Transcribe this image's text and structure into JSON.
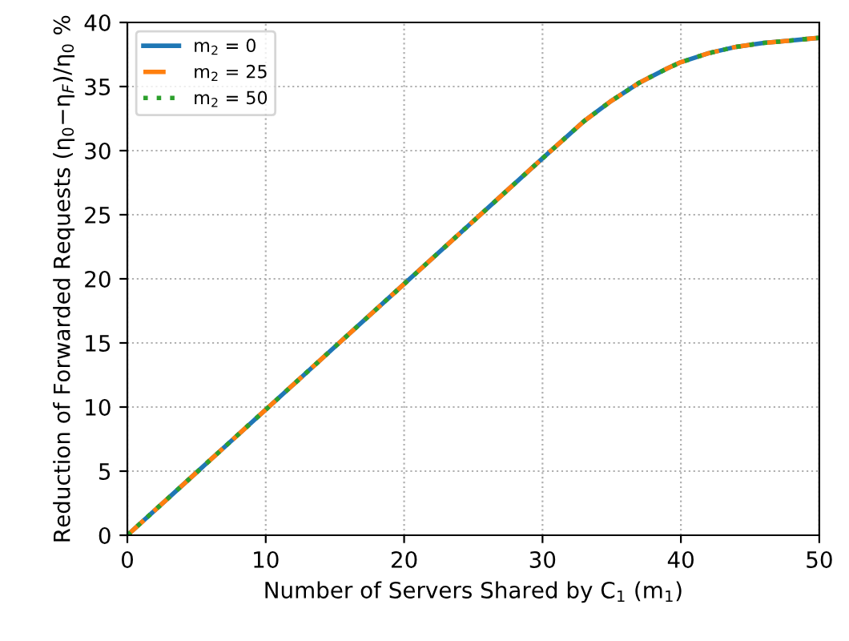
{
  "chart_data": {
    "type": "line",
    "xlabel": "Number of Servers Shared by C$_{1}$ (m$_{1}$)",
    "ylabel": "Reduction of Forwarded Requests (η$_{0}$−η$_{F}$)/η$_{0}$ %",
    "x": [
      0,
      5,
      10,
      15,
      20,
      25,
      30,
      33,
      35,
      37,
      39,
      40,
      42,
      44,
      46,
      48,
      50
    ],
    "series": [
      {
        "name": "m$_{2}$ = 0",
        "color": "#1f77b4",
        "line_style": "solid",
        "values": [
          0,
          4.9,
          9.8,
          14.7,
          19.6,
          24.5,
          29.4,
          32.3,
          33.9,
          35.3,
          36.4,
          36.9,
          37.6,
          38.1,
          38.4,
          38.6,
          38.8
        ]
      },
      {
        "name": "m$_{2}$ = 25",
        "color": "#ff7f0e",
        "line_style": "dashed",
        "values": [
          0,
          4.9,
          9.8,
          14.7,
          19.6,
          24.5,
          29.4,
          32.3,
          33.9,
          35.3,
          36.4,
          36.9,
          37.6,
          38.1,
          38.4,
          38.6,
          38.8
        ]
      },
      {
        "name": "m$_{2}$ = 50",
        "color": "#2ca02c",
        "line_style": "dotted",
        "values": [
          0,
          4.9,
          9.8,
          14.7,
          19.6,
          24.5,
          29.4,
          32.3,
          33.9,
          35.3,
          36.4,
          36.9,
          37.6,
          38.1,
          38.4,
          38.6,
          38.8
        ]
      }
    ],
    "xlim": [
      0,
      50
    ],
    "ylim": [
      0,
      40
    ],
    "xticks": [
      0,
      10,
      20,
      30,
      40,
      50
    ],
    "yticks": [
      0,
      5,
      10,
      15,
      20,
      25,
      30,
      35,
      40
    ],
    "grid": true,
    "legend": "top left",
    "marker": "none"
  }
}
